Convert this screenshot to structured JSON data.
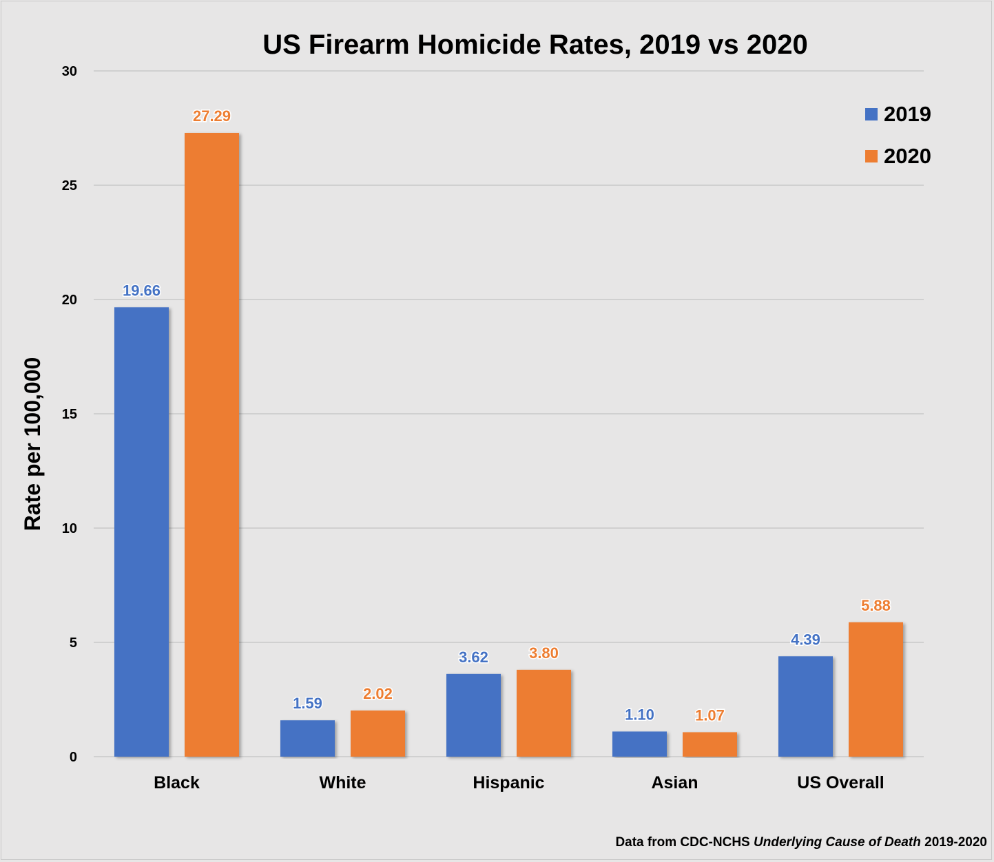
{
  "chart_data": {
    "type": "bar",
    "title": "US Firearm Homicide Rates, 2019 vs 2020",
    "ylabel": "Rate per 100,000",
    "xlabel": "",
    "categories": [
      "Black",
      "White",
      "Hispanic",
      "Asian",
      "US Overall"
    ],
    "series": [
      {
        "name": "2019",
        "color": "#4472c4",
        "values": [
          19.66,
          1.59,
          3.62,
          1.1,
          4.39
        ],
        "labels": [
          "19.66",
          "1.59",
          "3.62",
          "1.10",
          "4.39"
        ]
      },
      {
        "name": "2020",
        "color": "#ed7d31",
        "values": [
          27.29,
          2.02,
          3.8,
          1.07,
          5.88
        ],
        "labels": [
          "27.29",
          "2.02",
          "3.80",
          "1.07",
          "5.88"
        ]
      }
    ],
    "ylim": [
      0,
      30
    ],
    "yticks": [
      "0",
      "5",
      "10",
      "15",
      "20",
      "25",
      "30"
    ],
    "grid": true,
    "legend_position": "top-right",
    "source_prefix": "Data from CDC-NCHS ",
    "source_italic": "Underlying Cause of Death",
    "source_suffix": " 2019-2020"
  }
}
